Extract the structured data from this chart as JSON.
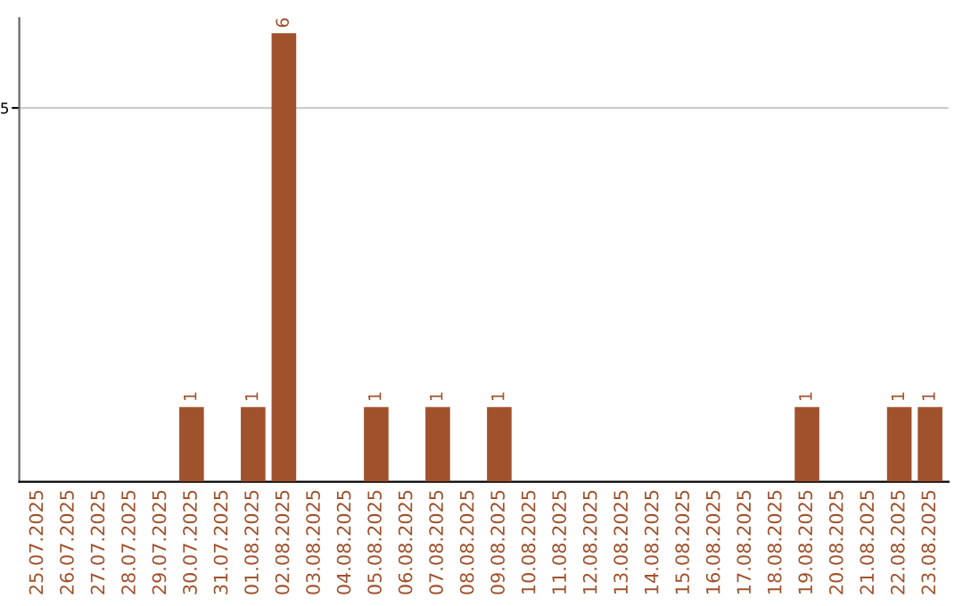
{
  "chart_data": {
    "type": "bar",
    "categories": [
      "25.07.2025",
      "26.07.2025",
      "27.07.2025",
      "28.07.2025",
      "29.07.2025",
      "30.07.2025",
      "31.07.2025",
      "01.08.2025",
      "02.08.2025",
      "03.08.2025",
      "04.08.2025",
      "05.08.2025",
      "06.08.2025",
      "07.08.2025",
      "08.08.2025",
      "09.08.2025",
      "10.08.2025",
      "11.08.2025",
      "12.08.2025",
      "13.08.2025",
      "14.08.2025",
      "15.08.2025",
      "16.08.2025",
      "17.08.2025",
      "18.08.2025",
      "19.08.2025",
      "20.08.2025",
      "21.08.2025",
      "22.08.2025",
      "23.08.2025"
    ],
    "values": [
      0,
      0,
      0,
      0,
      0,
      1,
      0,
      1,
      6,
      0,
      0,
      1,
      0,
      1,
      0,
      1,
      0,
      0,
      0,
      0,
      0,
      0,
      0,
      0,
      0,
      1,
      0,
      0,
      1,
      1
    ],
    "value_labels": [
      null,
      null,
      null,
      null,
      null,
      "1",
      null,
      "1",
      "6",
      null,
      null,
      "1",
      null,
      "1",
      null,
      "1",
      null,
      null,
      null,
      null,
      null,
      null,
      null,
      null,
      null,
      "1",
      null,
      null,
      "1",
      "1"
    ],
    "color": "#a0522d",
    "ylim": [
      0,
      6.2
    ],
    "yticks": [
      5
    ],
    "grid": "y"
  }
}
